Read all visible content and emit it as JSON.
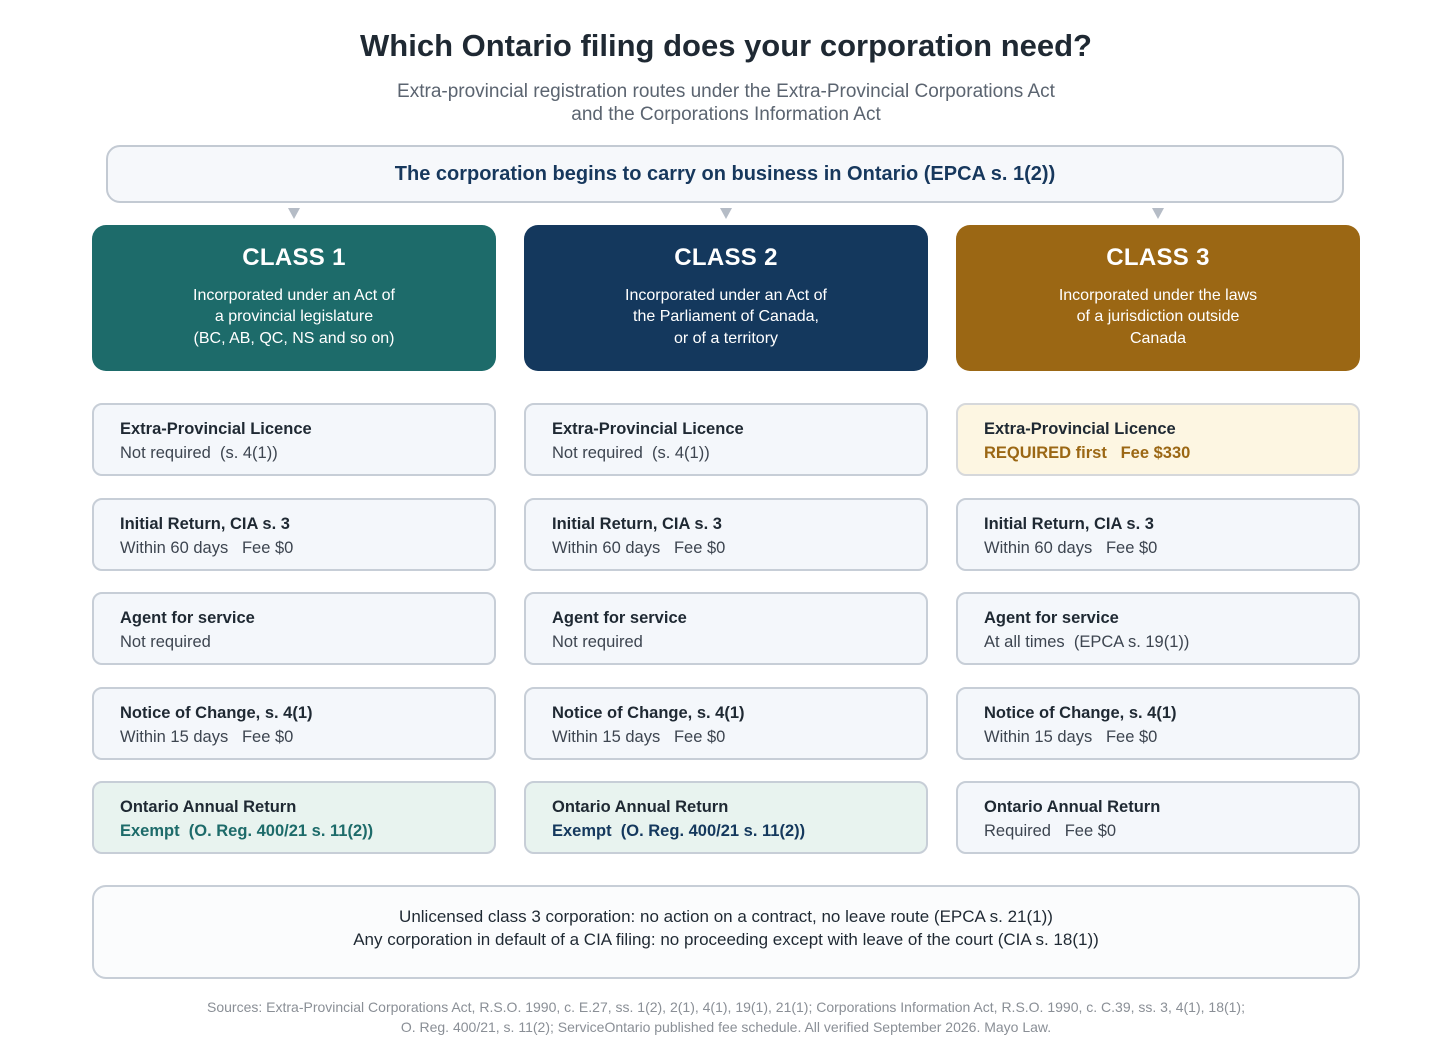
{
  "title": "Which Ontario filing does your corporation need?",
  "subtitle": {
    "line1": "Extra-provincial registration routes under the Extra-Provincial Corporations Act",
    "line2": "and the Corporations Information Act"
  },
  "trigger": "The corporation begins to carry on business in Ontario  (EPCA s. 1(2))",
  "colors": {
    "class1": "#1d6b6a",
    "class2": "#14385d",
    "class3": "#9b6714"
  },
  "classes": [
    {
      "title": "CLASS 1",
      "desc": [
        "Incorporated under an Act of",
        "a provincial legislature",
        "(BC, AB, QC, NS and so on)"
      ],
      "rows": [
        {
          "label": "Extra-Provincial Licence",
          "value": "Not required  (s. 4(1))"
        },
        {
          "label": "Initial Return, CIA s. 3",
          "value": "Within 60 days   Fee $0"
        },
        {
          "label": "Agent for service",
          "value": "Not required"
        },
        {
          "label": "Notice of Change, s. 4(1)",
          "value": "Within 15 days   Fee $0"
        },
        {
          "label": "Ontario Annual Return",
          "value": "Exempt  (O. Reg. 400/21 s. 11(2))"
        }
      ]
    },
    {
      "title": "CLASS 2",
      "desc": [
        "Incorporated under an Act of",
        "the Parliament of Canada,",
        "or of a territory"
      ],
      "rows": [
        {
          "label": "Extra-Provincial Licence",
          "value": "Not required  (s. 4(1))"
        },
        {
          "label": "Initial Return, CIA s. 3",
          "value": "Within 60 days   Fee $0"
        },
        {
          "label": "Agent for service",
          "value": "Not required"
        },
        {
          "label": "Notice of Change, s. 4(1)",
          "value": "Within 15 days   Fee $0"
        },
        {
          "label": "Ontario Annual Return",
          "value": "Exempt  (O. Reg. 400/21 s. 11(2))"
        }
      ]
    },
    {
      "title": "CLASS 3",
      "desc": [
        "Incorporated under the laws",
        "of a jurisdiction outside",
        "Canada"
      ],
      "rows": [
        {
          "label": "Extra-Provincial Licence",
          "value": "REQUIRED first   Fee $330"
        },
        {
          "label": "Initial Return, CIA s. 3",
          "value": "Within 60 days   Fee $0"
        },
        {
          "label": "Agent for service",
          "value": "At all times  (EPCA s. 19(1))"
        },
        {
          "label": "Notice of Change, s. 4(1)",
          "value": "Within 15 days   Fee $0"
        },
        {
          "label": "Ontario Annual Return",
          "value": "Required   Fee $0"
        }
      ]
    }
  ],
  "warnings": [
    "Unlicensed class 3 corporation: no action on a contract, no leave route  (EPCA s. 21(1))",
    "Any corporation in default of a CIA filing: no proceeding except with leave of the court  (CIA s. 18(1))"
  ],
  "sources": {
    "line1": "Sources: Extra-Provincial Corporations Act, R.S.O. 1990, c. E.27, ss. 1(2), 2(1), 4(1), 19(1), 21(1); Corporations Information Act, R.S.O. 1990, c. C.39, ss. 3, 4(1), 18(1);",
    "line2": "O. Reg. 400/21, s. 11(2); ServiceOntario published fee schedule. All verified September 2026. Mayo Law."
  }
}
